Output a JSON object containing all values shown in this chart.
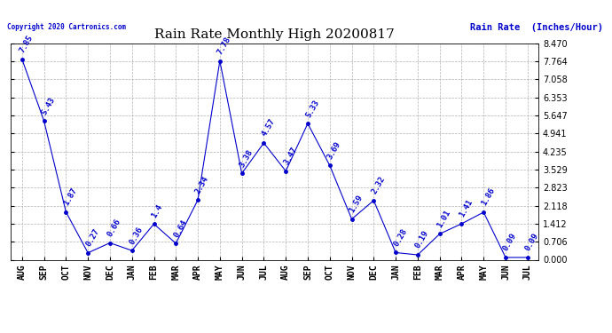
{
  "title": "Rain Rate Monthly High 20200817",
  "ylabel": "Rain Rate  (Inches/Hour)",
  "copyright": "Copyright 2020 Cartronics.com",
  "months": [
    "AUG",
    "SEP",
    "OCT",
    "NOV",
    "DEC",
    "JAN",
    "FEB",
    "MAR",
    "APR",
    "MAY",
    "JUN",
    "JUL",
    "AUG",
    "SEP",
    "OCT",
    "NOV",
    "DEC",
    "JAN",
    "FEB",
    "MAR",
    "APR",
    "MAY",
    "JUN",
    "JUL"
  ],
  "values": [
    7.85,
    5.43,
    1.87,
    0.27,
    0.66,
    0.36,
    1.4,
    0.64,
    2.34,
    7.78,
    3.38,
    4.57,
    3.47,
    5.33,
    3.69,
    1.59,
    2.32,
    0.28,
    0.19,
    1.01,
    1.41,
    1.86,
    0.09,
    0.09
  ],
  "yticks": [
    0.0,
    0.706,
    1.412,
    2.118,
    2.823,
    3.529,
    4.235,
    4.941,
    5.647,
    6.353,
    7.058,
    7.764,
    8.47
  ],
  "ylim": [
    0.0,
    8.47
  ],
  "line_color": "#0000cc",
  "marker_color": "#0000cc",
  "grid_color": "#b0b0b0",
  "title_color": "#000000",
  "ylabel_color": "#0000cc",
  "copyright_color": "#0000cc",
  "background_color": "#ffffff",
  "title_fontsize": 11,
  "ylabel_fontsize": 7.5,
  "label_fontsize": 6.5,
  "tick_fontsize": 7,
  "copyright_fontsize": 5.5
}
